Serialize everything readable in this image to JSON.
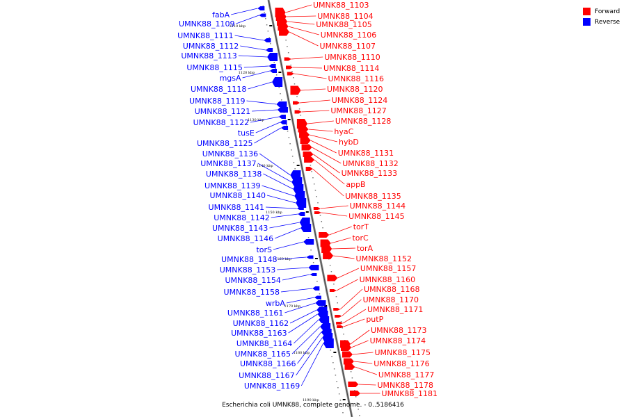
{
  "legend": {
    "forward_label": "Forward",
    "reverse_label": "Reverse",
    "forward_color": "#ff0000",
    "reverse_color": "#0000ff"
  },
  "caption": "Escherichia coli UMNK88, complete genome. - 0..5186416",
  "ticks": [
    "1110 kbp",
    "1120 kbp",
    "1130 kbp",
    "1140 kbp",
    "1150 kbp",
    "1160 kbp",
    "1170 kbp",
    "1180 kbp",
    "1190 kbp"
  ],
  "forward_genes": [
    "UMNK88_1103",
    "UMNK88_1104",
    "UMNK88_1105",
    "UMNK88_1106",
    "UMNK88_1107",
    "UMNK88_1110",
    "UMNK88_1114",
    "UMNK88_1116",
    "UMNK88_1120",
    "UMNK88_1124",
    "UMNK88_1127",
    "UMNK88_1128",
    "hyaC",
    "hybD",
    "UMNK88_1131",
    "UMNK88_1132",
    "UMNK88_1133",
    "appB",
    "UMNK88_1135",
    "UMNK88_1144",
    "UMNK88_1145",
    "torT",
    "torC",
    "torA",
    "UMNK88_1152",
    "UMNK88_1157",
    "UMNK88_1160",
    "UMNK88_1168",
    "UMNK88_1170",
    "UMNK88_1171",
    "putP",
    "UMNK88_1173",
    "UMNK88_1174",
    "UMNK88_1175",
    "UMNK88_1176",
    "UMNK88_1177",
    "UMNK88_1178",
    "UMNK88_1181"
  ],
  "reverse_genes": [
    "fabA",
    "UMNK88_1109",
    "UMNK88_1111",
    "UMNK88_1112",
    "UMNK88_1113",
    "UMNK88_1115",
    "mgsA",
    "UMNK88_1118",
    "UMNK88_1119",
    "UMNK88_1121",
    "UMNK88_1122",
    "tusE",
    "UMNK88_1125",
    "UMNK88_1136",
    "UMNK88_1137",
    "UMNK88_1138",
    "UMNK88_1139",
    "UMNK88_1140",
    "UMNK88_1141",
    "UMNK88_1142",
    "UMNK88_1143",
    "UMNK88_1146",
    "torS",
    "UMNK88_1148",
    "UMNK88_1153",
    "UMNK88_1154",
    "UMNK88_1158",
    "wrbA",
    "UMNK88_1161",
    "UMNK88_1162",
    "UMNK88_1163",
    "UMNK88_1164",
    "UMNK88_1165",
    "UMNK88_1166",
    "UMNK88_1167",
    "UMNK88_1169"
  ]
}
